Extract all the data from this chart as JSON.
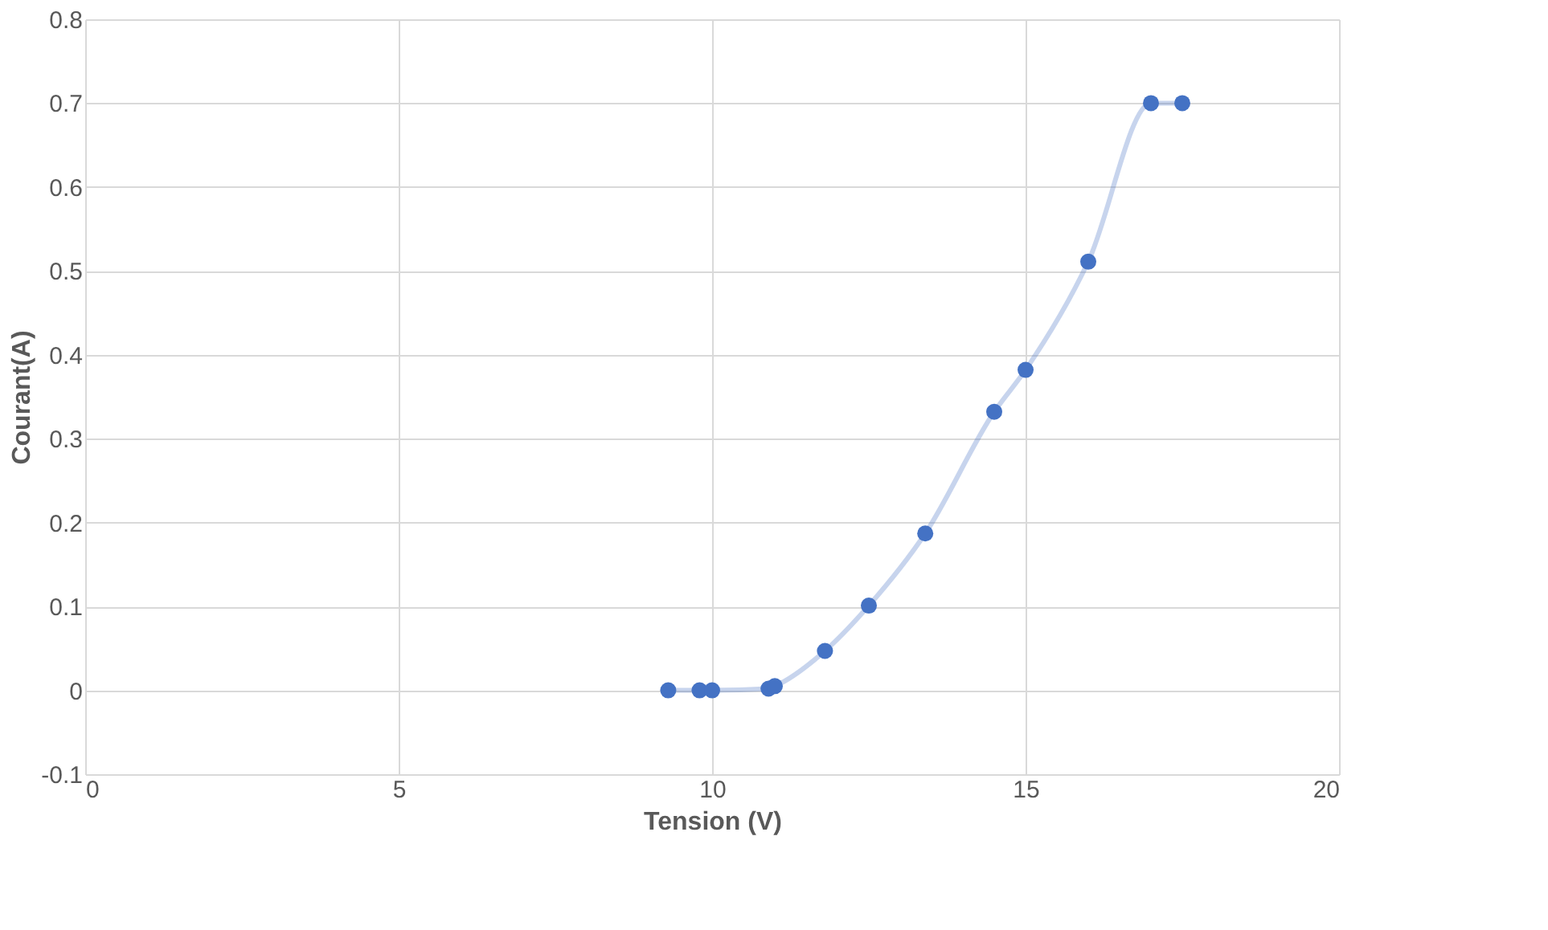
{
  "chart_data": {
    "type": "line",
    "xlabel": "Tension (V)",
    "ylabel": "Courant(A)",
    "x": [
      9.3,
      9.8,
      10.0,
      10.9,
      11.0,
      11.8,
      12.5,
      13.4,
      14.5,
      15.0,
      16.0,
      17.0,
      17.5
    ],
    "series": [
      {
        "color": "#4472c4",
        "values": [
          0,
          0,
          0,
          0.002,
          0.005,
          0.047,
          0.101,
          0.187,
          0.332,
          0.382,
          0.511,
          0.7,
          0.7
        ]
      }
    ],
    "marker": "circle",
    "line_style": "solid",
    "grid": true,
    "legend": false,
    "xlim": [
      0,
      20
    ],
    "xticks": [
      0,
      5,
      10,
      15,
      20
    ],
    "ylim": [
      -0.1,
      0.8
    ],
    "yticks": [
      -0.1,
      0,
      0.1,
      0.2,
      0.3,
      0.4,
      0.5,
      0.6,
      0.7,
      0.8
    ]
  }
}
